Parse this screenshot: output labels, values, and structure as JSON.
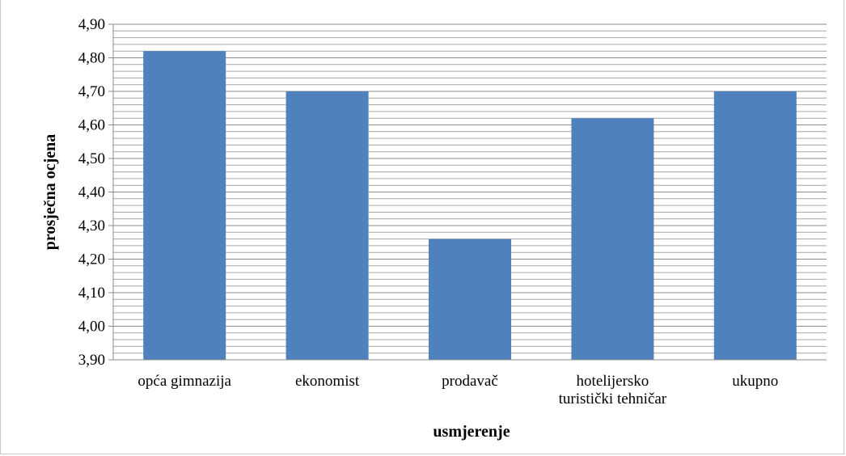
{
  "chart_data": {
    "type": "bar",
    "title": "",
    "xlabel": "usmjerenje",
    "ylabel": "prosječna ocjena",
    "categories": [
      "opća gimnazija",
      "ekonomist",
      "prodavač",
      "hotelijersko turistički tehničar",
      "ukupno"
    ],
    "category_lines": [
      [
        "opća gimnazija"
      ],
      [
        "ekonomist"
      ],
      [
        "prodavač"
      ],
      [
        "hotelijersko",
        "turistički tehničar"
      ],
      [
        "ukupno"
      ]
    ],
    "values": [
      4.82,
      4.7,
      4.26,
      4.62,
      4.7
    ],
    "ylim": [
      3.9,
      4.9
    ],
    "y_ticks": [
      "3,90",
      "4,00",
      "4,10",
      "4,20",
      "4,30",
      "4,40",
      "4,50",
      "4,60",
      "4,70",
      "4,80",
      "4,90"
    ],
    "grid": true,
    "legend": "none",
    "bar_color": "#4f81bd"
  }
}
